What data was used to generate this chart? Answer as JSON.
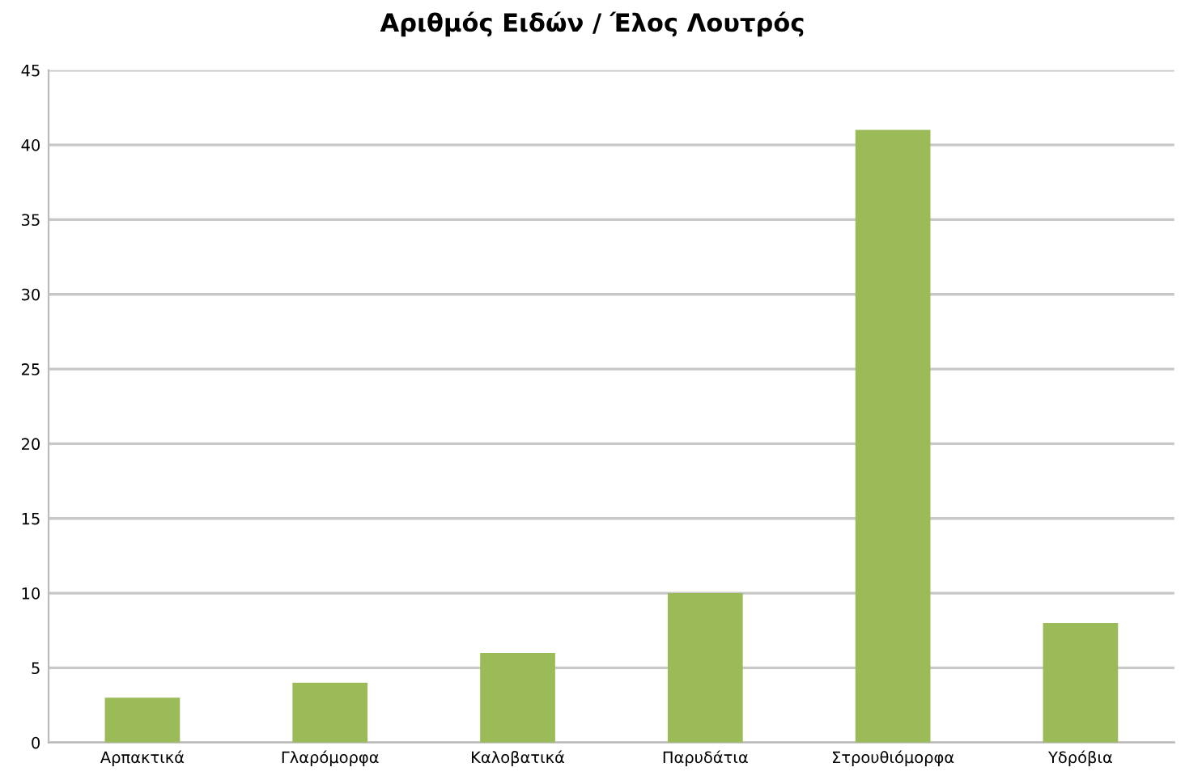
{
  "chart_data": {
    "type": "bar",
    "title": "Αριθμός Ειδών / Έλος Λουτρός",
    "categories": [
      "Αρπακτικά",
      "Γλαρόμορφα",
      "Καλοβατικά",
      "Παρυδάτια",
      "Στρουθιόμορφα",
      "Υδρόβια"
    ],
    "values": [
      3,
      4,
      6,
      10,
      41,
      8
    ],
    "color": "#9bbb59",
    "ylim": [
      0,
      45
    ],
    "yticks": [
      0,
      5,
      10,
      15,
      20,
      25,
      30,
      35,
      40,
      45
    ],
    "grid": "y"
  }
}
